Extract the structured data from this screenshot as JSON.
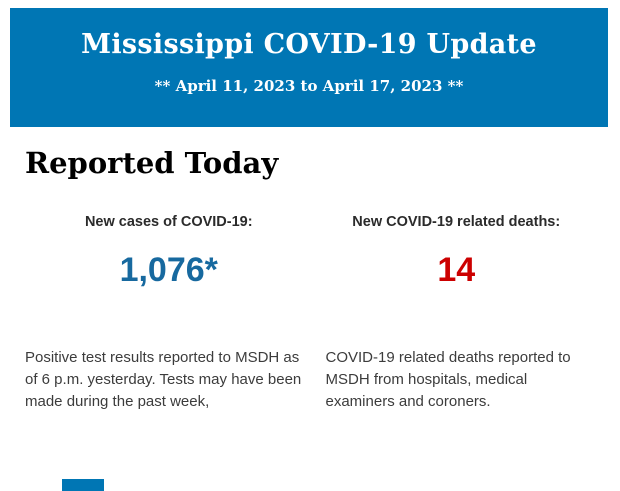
{
  "banner": {
    "title": "Mississippi COVID-19 Update",
    "date_range": "** April 11, 2023 to April 17, 2023 **",
    "background_color": "#0076B4",
    "text_color": "#FFFFFF"
  },
  "section": {
    "heading": "Reported Today"
  },
  "stats": {
    "cases": {
      "label": "New cases of COVID-19:",
      "value": "1,076*",
      "value_color": "#17699F",
      "description": "Positive test results reported to MSDH as of 6 p.m. yesterday. Tests may have been made during the past week,"
    },
    "deaths": {
      "label": "New COVID-19 related deaths:",
      "value": "14",
      "value_color": "#CC0000",
      "description": "COVID-19 related deaths reported to MSDH from hospitals, medical examiners and coroners."
    }
  },
  "footer": {
    "partial_next_banner_color": "#0076B4"
  }
}
